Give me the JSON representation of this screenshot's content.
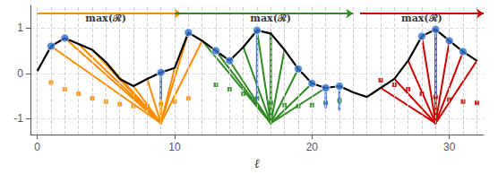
{
  "chart_data": {
    "type": "line",
    "xlabel": "ℓ",
    "xlim": [
      -0.5,
      32.5
    ],
    "ylim": [
      -1.35,
      1.5
    ],
    "xticks": [
      0,
      10,
      20,
      30
    ],
    "yticks": [
      -1,
      0,
      1
    ],
    "grid": true,
    "series": [
      {
        "type": "line",
        "color": "#000000",
        "x": [
          0,
          1,
          2,
          3,
          4,
          5,
          6,
          7,
          8,
          9,
          10,
          11,
          12,
          13,
          14,
          15,
          16,
          17,
          18,
          19,
          20,
          21,
          22,
          23,
          24,
          25,
          26,
          27,
          28,
          29,
          30,
          31,
          32
        ],
        "values": [
          0.05,
          0.6,
          0.78,
          0.65,
          0.52,
          0.25,
          -0.12,
          -0.28,
          -0.12,
          0.02,
          0.12,
          0.9,
          0.72,
          0.5,
          0.28,
          0.58,
          0.95,
          0.88,
          0.52,
          0.1,
          -0.22,
          -0.32,
          -0.28,
          -0.42,
          -0.52,
          -0.32,
          -0.12,
          0.28,
          0.82,
          0.97,
          0.72,
          0.48,
          0.28
        ]
      },
      {
        "type": "stem",
        "color": "#FF8C00",
        "x": [
          9
        ],
        "y1": [
          0.02
        ],
        "y2": [
          -1.1
        ]
      },
      {
        "type": "fan",
        "color": "#FF8C00",
        "base_x": 9,
        "base_y": -1.1,
        "x": [
          1,
          2,
          3,
          4,
          5,
          6,
          7,
          8,
          10,
          11,
          12
        ],
        "values": [
          0.6,
          0.78,
          0.65,
          0.52,
          0.25,
          -0.12,
          -0.28,
          -0.12,
          0.12,
          0.9,
          0.72
        ]
      },
      {
        "type": "stem",
        "color": "#2E8B22",
        "x": [
          17
        ],
        "y1": [
          0.88
        ],
        "y2": [
          -1.1
        ]
      },
      {
        "type": "fan",
        "color": "#2E8B22",
        "base_x": 17,
        "base_y": -1.1,
        "x": [
          12,
          13,
          14,
          15,
          16,
          17,
          18,
          19,
          20,
          21
        ],
        "values": [
          0.72,
          0.5,
          0.28,
          0.58,
          0.95,
          0.88,
          0.52,
          0.1,
          -0.22,
          -0.32
        ]
      },
      {
        "type": "stem",
        "color": "#CC0000",
        "x": [
          29
        ],
        "y1": [
          0.97
        ],
        "y2": [
          -1.1
        ]
      },
      {
        "type": "fan",
        "color": "#CC0000",
        "base_x": 29,
        "base_y": -1.1,
        "x": [
          25,
          26,
          27,
          28,
          29,
          30,
          31,
          32
        ],
        "values": [
          -0.32,
          -0.12,
          0.28,
          0.82,
          0.97,
          0.72,
          0.48,
          0.28
        ]
      },
      {
        "type": "stem",
        "color": "#3070D0",
        "x": [
          9,
          16,
          21,
          22,
          29
        ],
        "y1": [
          0.02,
          0.95,
          -0.32,
          -0.28,
          0.97
        ],
        "y2": [
          -0.55,
          -0.6,
          -0.75,
          -0.8,
          -0.5
        ]
      },
      {
        "type": "scatter",
        "marker": "square",
        "color": "#FF8C00",
        "x": [
          1,
          2,
          3,
          4,
          5,
          6,
          7,
          8,
          9,
          10,
          11
        ],
        "values": [
          -0.2,
          -0.35,
          -0.45,
          -0.55,
          -0.62,
          -0.68,
          -0.72,
          -0.72,
          -0.68,
          -0.62,
          -0.55
        ]
      },
      {
        "type": "scatter",
        "marker": "square",
        "color": "#2E8B22",
        "x": [
          13,
          14,
          15,
          16,
          17,
          18,
          19,
          20,
          21,
          22
        ],
        "values": [
          -0.25,
          -0.35,
          -0.45,
          -0.55,
          -0.65,
          -0.7,
          -0.72,
          -0.7,
          -0.65,
          -0.6
        ]
      },
      {
        "type": "scatter",
        "marker": "square",
        "color": "#CC0000",
        "x": [
          25,
          26,
          27,
          28,
          29,
          30,
          31,
          32
        ],
        "values": [
          -0.15,
          -0.25,
          -0.35,
          -0.45,
          -0.52,
          -0.58,
          -0.62,
          -0.65
        ]
      },
      {
        "type": "scatter",
        "marker": "circle",
        "color": "#3070D0",
        "x": [
          1,
          2,
          9,
          11,
          13,
          14,
          16,
          19,
          20,
          21,
          22,
          28,
          29,
          30,
          31
        ],
        "values": [
          0.6,
          0.78,
          0.02,
          0.9,
          0.5,
          0.28,
          0.95,
          0.1,
          -0.22,
          -0.32,
          -0.28,
          0.82,
          0.97,
          0.72,
          0.48
        ]
      }
    ],
    "arrows": [
      {
        "color": "#FF8C00",
        "x0": 0,
        "x1": 10.5,
        "y": 1.32
      },
      {
        "color": "#2E8B22",
        "x0": 10,
        "x1": 23,
        "y": 1.32
      },
      {
        "color": "#CC0000",
        "x0": 23.5,
        "x1": 32.5,
        "y": 1.32
      }
    ],
    "annotations": [
      {
        "text": "max(ℛ)",
        "x": 3.5,
        "y": 1.1
      },
      {
        "text": "max(ℛ)",
        "x": 15.5,
        "y": 1.1
      },
      {
        "text": "max(ℛ)",
        "x": 26.5,
        "y": 1.1
      }
    ]
  }
}
